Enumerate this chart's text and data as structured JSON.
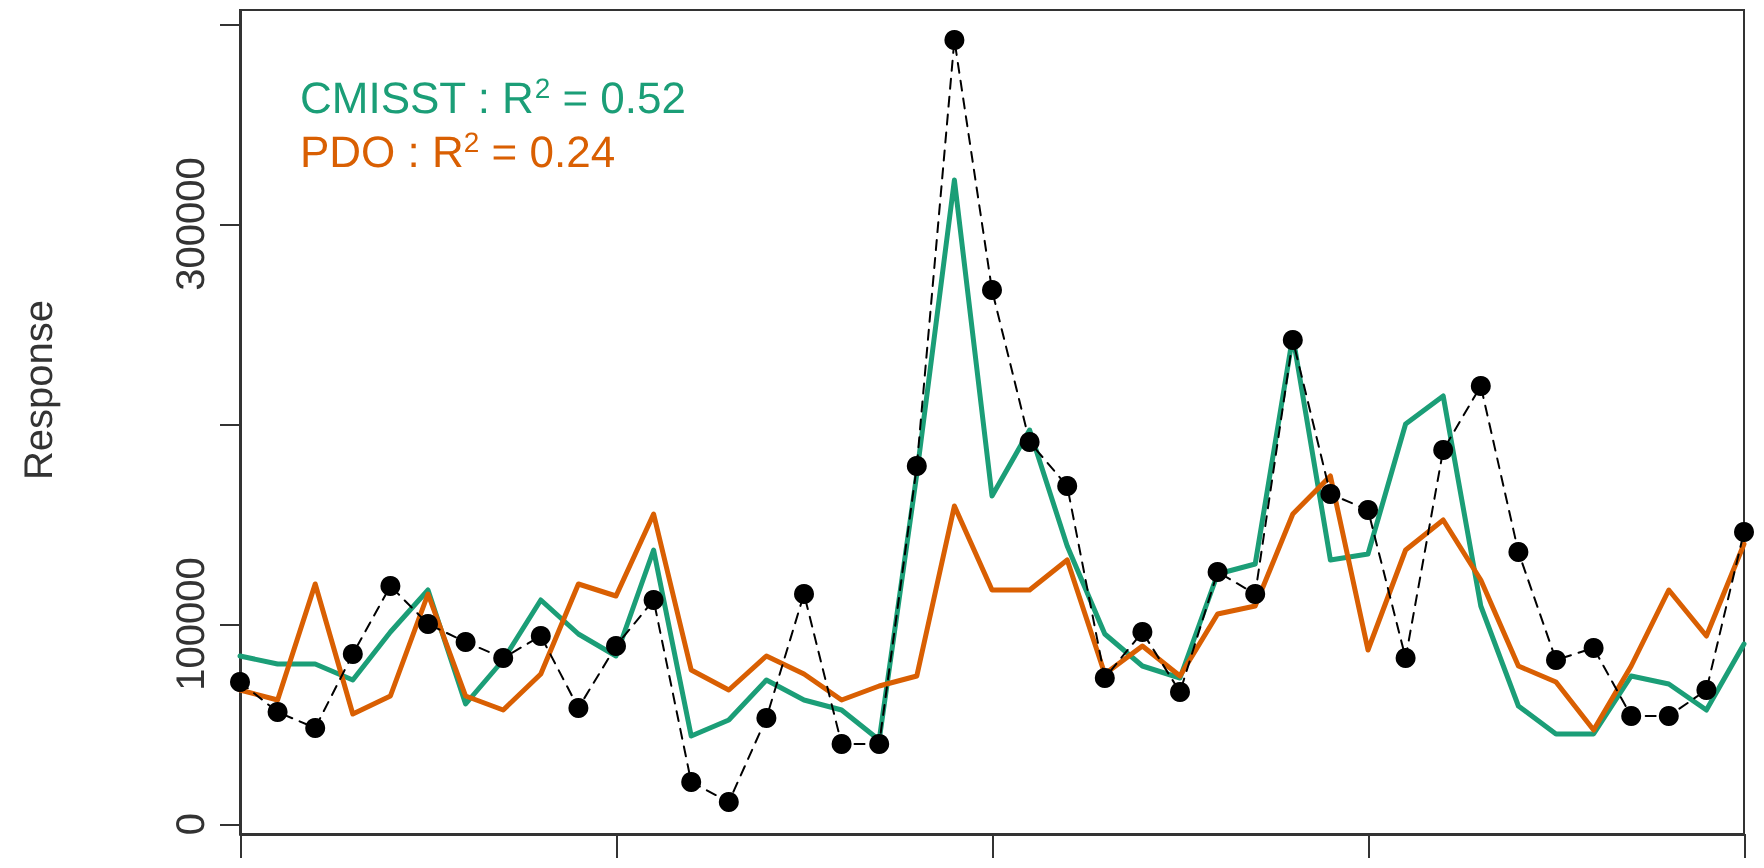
{
  "chart_data": {
    "type": "line",
    "ylabel": "Response",
    "categories": [
      null,
      null,
      null,
      null,
      null,
      null,
      null,
      null,
      null,
      null,
      null,
      null,
      null,
      null,
      null,
      null,
      null,
      null,
      null,
      null,
      null,
      null,
      null,
      null,
      null,
      null,
      null,
      null,
      null,
      null,
      null,
      null,
      null,
      null,
      null,
      null,
      null,
      null,
      null,
      null,
      null
    ],
    "series": [
      {
        "color": "#000000",
        "marker": "circle",
        "line_style": "dashed",
        "values": [
          71000,
          56000,
          48000,
          85000,
          119000,
          100000,
          91000,
          83000,
          94000,
          58000,
          89000,
          112000,
          21000,
          11000,
          53000,
          115000,
          40000,
          40000,
          179000,
          392000,
          267000,
          191000,
          169000,
          73000,
          96000,
          66000,
          126000,
          115000,
          242000,
          165000,
          157000,
          83000,
          187000,
          219000,
          136000,
          82000,
          88000,
          54000,
          54000,
          67000,
          146000
        ]
      },
      {
        "name": "CMISST : R$^{2}$ = 0.52",
        "color": "#1b9e77",
        "marker": "none",
        "line_style": "solid",
        "values": [
          84000,
          80000,
          80000,
          72000,
          96000,
          117000,
          60000,
          82000,
          112000,
          95000,
          84000,
          137000,
          44000,
          52000,
          72000,
          62000,
          57000,
          42000,
          175000,
          322000,
          164000,
          197000,
          139000,
          95000,
          79000,
          73000,
          125000,
          130000,
          244000,
          132000,
          135000,
          200000,
          214000,
          109000,
          59000,
          45000,
          45000,
          74000,
          70000,
          57000,
          90000
        ]
      },
      {
        "name": "PDO : R$^{2}$ = 0.24",
        "color": "#d95f02",
        "marker": "none",
        "line_style": "solid",
        "values": [
          67000,
          62000,
          120000,
          55000,
          64000,
          115000,
          64000,
          57000,
          75000,
          120000,
          114000,
          155000,
          77000,
          67000,
          84000,
          75000,
          62000,
          69000,
          74000,
          159000,
          117000,
          117000,
          132000,
          75000,
          89000,
          74000,
          105000,
          109000,
          155000,
          174000,
          87000,
          137000,
          152000,
          122000,
          79000,
          71000,
          47000,
          79000,
          117000,
          94000,
          140000
        ]
      }
    ],
    "ylim": [
      -5000,
      407000
    ],
    "yticks": [
      0,
      100000,
      {
        "value": 200000,
        "label": null
      },
      300000,
      {
        "value": 400000,
        "label": null
      }
    ],
    "tick_labels": "y",
    "grid": false,
    "legend": "top left"
  }
}
